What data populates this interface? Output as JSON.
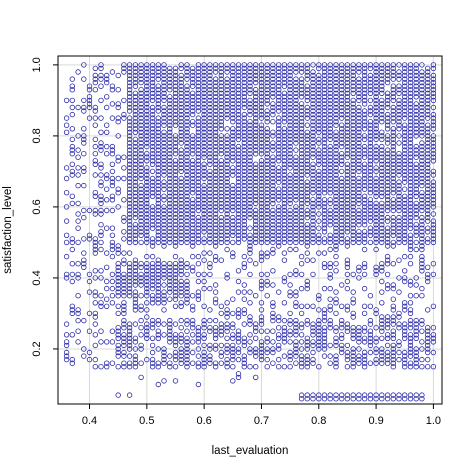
{
  "chart_data": {
    "type": "scatter",
    "title": "",
    "xlabel": "last_evaluation",
    "ylabel": "satisfaction_level",
    "xlim": [
      0.345,
      1.015
    ],
    "ylim": [
      0.045,
      1.025
    ],
    "x_ticks": [
      0.4,
      0.5,
      0.6,
      0.7,
      0.8,
      0.9,
      1.0
    ],
    "x_tick_labels": [
      "0.4",
      "0.5",
      "0.6",
      "0.7",
      "0.8",
      "0.9",
      "1.0"
    ],
    "y_ticks": [
      0.2,
      0.4,
      0.6,
      0.8,
      1.0
    ],
    "y_tick_labels": [
      "0.2",
      "0.4",
      "0.6",
      "0.8",
      "1.0"
    ],
    "grid": true,
    "legend": "none",
    "point_color": "#2a2aa8",
    "x_step": 0.01,
    "y_step": 0.01,
    "regions": [
      {
        "x": [
          0.47,
          1.0
        ],
        "y": [
          0.5,
          1.0
        ],
        "fill": 0.93
      },
      {
        "x": [
          0.36,
          0.47
        ],
        "y": [
          0.5,
          1.0
        ],
        "fill": 0.3
      },
      {
        "x": [
          0.45,
          0.57
        ],
        "y": [
          0.35,
          0.44
        ],
        "fill": 0.9
      },
      {
        "x": [
          0.36,
          1.0
        ],
        "y": [
          0.15,
          0.5
        ],
        "fill": 0.28
      },
      {
        "x": [
          0.45,
          1.0
        ],
        "y": [
          0.15,
          0.28
        ],
        "fill": 0.45
      },
      {
        "x": [
          0.77,
          0.98
        ],
        "y": [
          0.06,
          0.07
        ],
        "fill": 1.0
      },
      {
        "x": [
          0.45,
          0.7
        ],
        "y": [
          0.07,
          0.14
        ],
        "fill": 0.04
      }
    ]
  }
}
